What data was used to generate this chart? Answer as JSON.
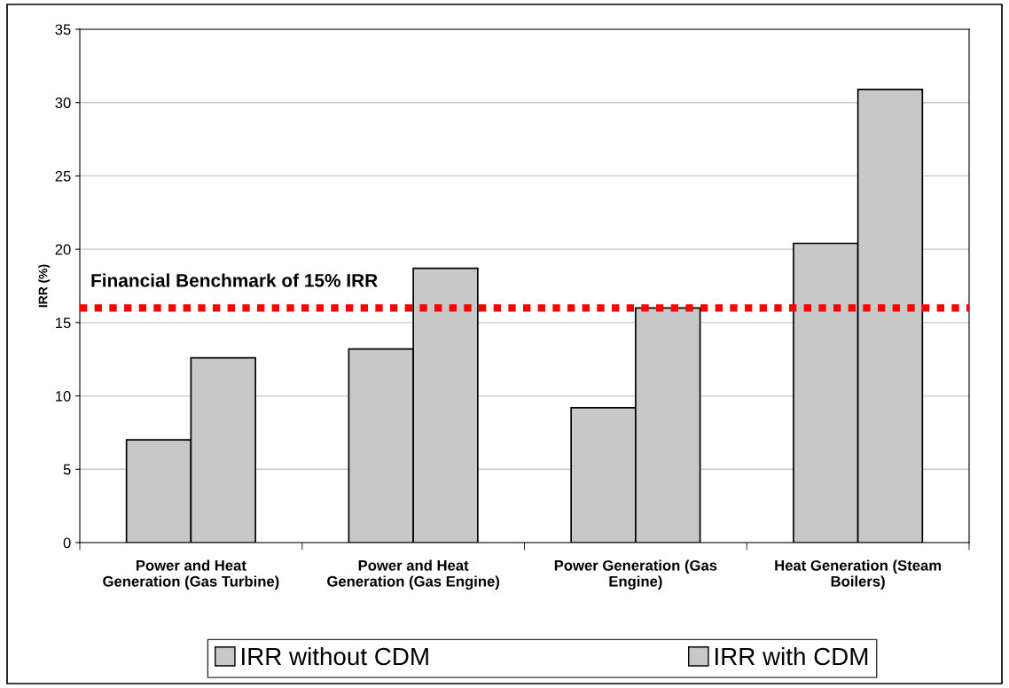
{
  "chart_data": {
    "type": "bar",
    "ylabel": "IRR (%)",
    "categories": [
      "Power and Heat\nGeneration (Gas Turbine)",
      "Power and Heat\nGeneration (Gas Engine)",
      "Power Generation (Gas\nEngine)",
      "Heat Generation (Steam\nBoilers)"
    ],
    "series": [
      {
        "name": "IRR without CDM",
        "color": "#c8c8c8",
        "values": [
          7.0,
          13.2,
          9.2,
          20.4
        ]
      },
      {
        "name": "IRR with CDM",
        "color": "#c8c8c8",
        "values": [
          12.6,
          18.7,
          16.0,
          30.9
        ]
      }
    ],
    "ylim": [
      0,
      35
    ],
    "yticks": [
      0,
      5,
      10,
      15,
      20,
      25,
      30,
      35
    ],
    "grid": "y",
    "legend": "bottom",
    "ref_lines": [
      {
        "axis": "y",
        "value": 16.0,
        "label": "Financial Benchmark of 15% IRR",
        "color": "#ff0000",
        "line_style": "dotted"
      }
    ]
  }
}
